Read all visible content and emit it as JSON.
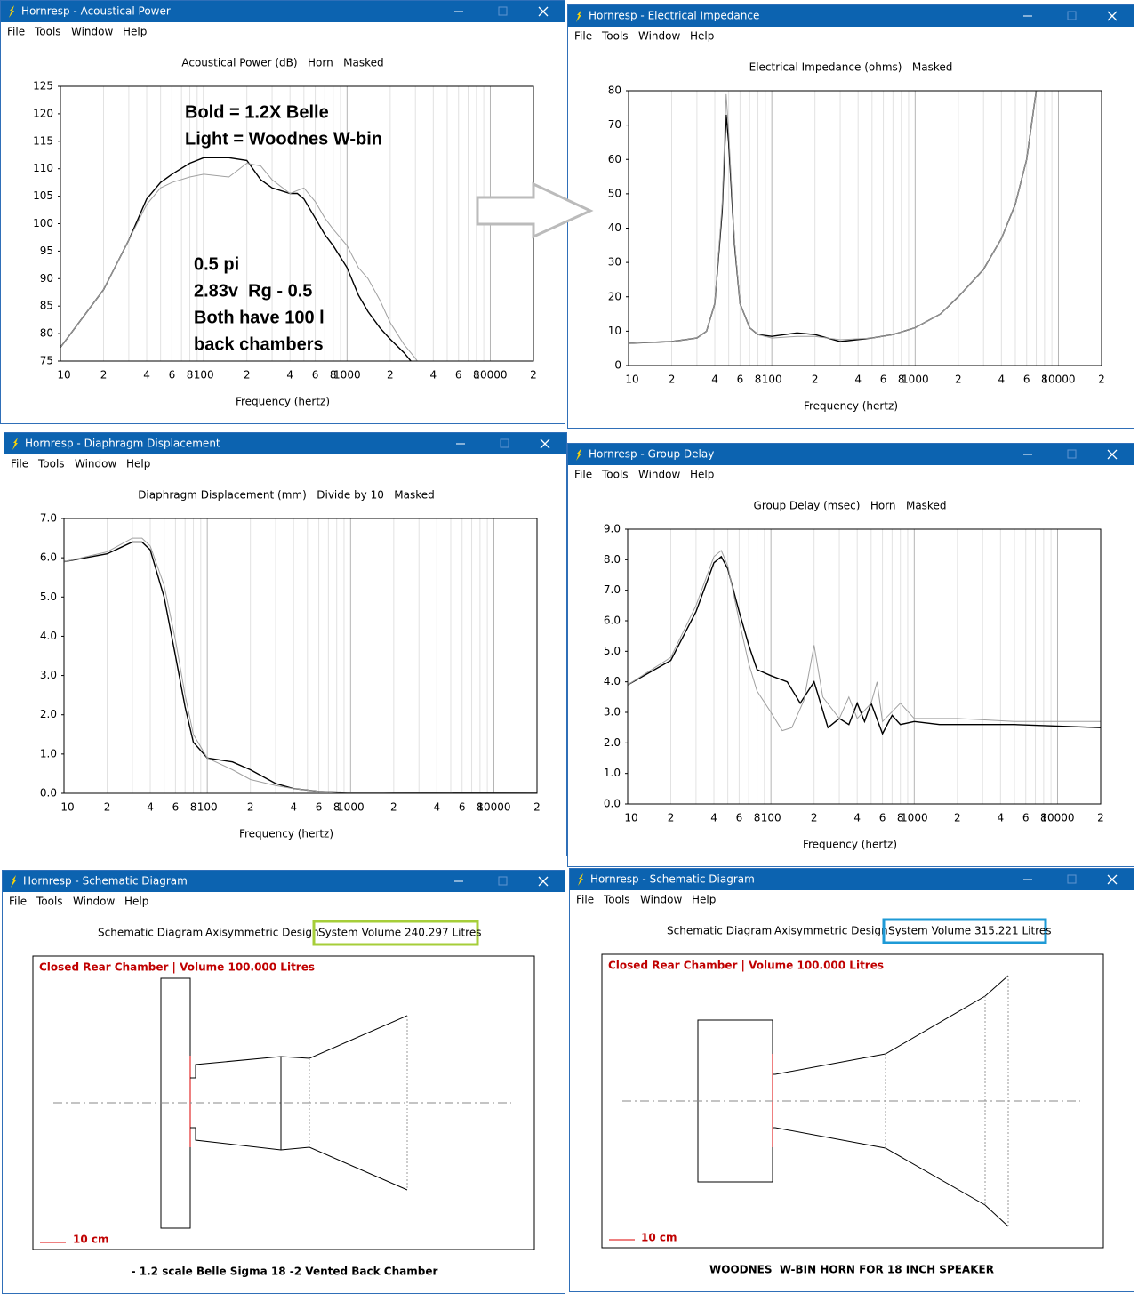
{
  "windows": [
    {
      "title": "Hornresp - Acoustical Power",
      "menu": [
        "File",
        "Tools",
        "Window",
        "Help"
      ]
    },
    {
      "title": "Hornresp - Electrical Impedance",
      "menu": [
        "File",
        "Tools",
        "Window",
        "Help"
      ]
    },
    {
      "title": "Hornresp - Diaphragm Displacement",
      "menu": [
        "File",
        "Tools",
        "Window",
        "Help"
      ]
    },
    {
      "title": "Hornresp - Group Delay",
      "menu": [
        "File",
        "Tools",
        "Window",
        "Help"
      ]
    },
    {
      "title": "Hornresp - Schematic Diagram",
      "menu": [
        "File",
        "Tools",
        "Window",
        "Help"
      ]
    },
    {
      "title": "Hornresp - Schematic Diagram",
      "menu": [
        "File",
        "Tools",
        "Window",
        "Help"
      ]
    }
  ],
  "chart_data": [
    {
      "type": "line",
      "title": "Acoustical Power (dB)   Horn   Masked",
      "xlabel": "Frequency (hertz)",
      "xscale": "log",
      "xlim": [
        10,
        20000
      ],
      "xticks": [
        10,
        {
          "value": 20,
          "label": "2"
        },
        {
          "value": 40,
          "label": "4"
        },
        {
          "value": 60,
          "label": "6"
        },
        {
          "value": 80,
          "label": "8"
        },
        100,
        {
          "value": 200,
          "label": "2"
        },
        {
          "value": 400,
          "label": "4"
        },
        {
          "value": 600,
          "label": "6"
        },
        {
          "value": 800,
          "label": "8"
        },
        1000,
        {
          "value": 2000,
          "label": "2"
        },
        {
          "value": 4000,
          "label": "4"
        },
        {
          "value": 6000,
          "label": "6"
        },
        {
          "value": 8000,
          "label": "8"
        },
        10000,
        {
          "value": 20000,
          "label": "2"
        }
      ],
      "xminor": [
        30,
        50,
        70,
        90,
        300,
        500,
        700,
        900,
        3000,
        5000,
        7000,
        9000
      ],
      "ylim": [
        75,
        125
      ],
      "yticks": [
        75,
        80,
        85,
        90,
        95,
        100,
        105,
        110,
        115,
        120,
        125
      ],
      "grid": "x",
      "annotations": [
        "Bold = 1.2X Belle",
        "Light = Woodnes W-bin",
        "0.5 pi",
        "2.83v  Rg - 0.5",
        "Both have 100 l",
        "back chambers"
      ],
      "series": [
        {
          "color": "#000000",
          "x": [
            10,
            20,
            30,
            40,
            50,
            60,
            80,
            100,
            150,
            200,
            250,
            300,
            400,
            450,
            500,
            600,
            700,
            800,
            1000,
            1200,
            1400,
            1700,
            2000,
            2500,
            3000
          ],
          "values": [
            77.5,
            88,
            97,
            104.5,
            107.5,
            109,
            111,
            112,
            112,
            111.5,
            108,
            106.5,
            105.5,
            105.5,
            104.5,
            101,
            98,
            96,
            92,
            87,
            84,
            81,
            79,
            76.5,
            74
          ]
        },
        {
          "color": "#a0a0a0",
          "x": [
            10,
            20,
            30,
            40,
            50,
            60,
            80,
            100,
            150,
            200,
            250,
            300,
            400,
            500,
            600,
            700,
            800,
            1000,
            1200,
            1400,
            1700,
            2000,
            2500,
            3000,
            3500
          ],
          "values": [
            77.5,
            88,
            97,
            103.5,
            106.5,
            107.5,
            108.5,
            109,
            108.5,
            111,
            110.5,
            108,
            105.5,
            106.5,
            104,
            101,
            99,
            96,
            92,
            90,
            86,
            82,
            78,
            75.5,
            73
          ]
        }
      ]
    },
    {
      "type": "line",
      "title": "Electrical Impedance (ohms)   Masked",
      "xlabel": "Frequency (hertz)",
      "xscale": "log",
      "xlim": [
        10,
        20000
      ],
      "xticks": [
        10,
        {
          "value": 20,
          "label": "2"
        },
        {
          "value": 40,
          "label": "4"
        },
        {
          "value": 60,
          "label": "6"
        },
        {
          "value": 80,
          "label": "8"
        },
        100,
        {
          "value": 200,
          "label": "2"
        },
        {
          "value": 400,
          "label": "4"
        },
        {
          "value": 600,
          "label": "6"
        },
        {
          "value": 800,
          "label": "8"
        },
        1000,
        {
          "value": 2000,
          "label": "2"
        },
        {
          "value": 4000,
          "label": "4"
        },
        {
          "value": 6000,
          "label": "6"
        },
        {
          "value": 8000,
          "label": "8"
        },
        10000,
        {
          "value": 20000,
          "label": "2"
        }
      ],
      "xminor": [
        30,
        50,
        70,
        90,
        300,
        500,
        700,
        900,
        3000,
        5000,
        7000,
        9000
      ],
      "ylim": [
        0,
        80
      ],
      "yticks": [
        0,
        10,
        20,
        30,
        40,
        50,
        60,
        70,
        80
      ],
      "grid": "x",
      "series": [
        {
          "color": "#000000",
          "x": [
            10,
            20,
            30,
            35,
            40,
            45,
            48,
            50,
            55,
            60,
            70,
            80,
            100,
            150,
            200,
            300,
            500,
            700,
            1000,
            1500,
            2000,
            3000,
            4000,
            5000,
            6000,
            7000,
            8000
          ],
          "values": [
            6.5,
            7,
            8,
            10,
            18,
            45,
            73,
            65,
            35,
            18,
            11,
            9,
            8.5,
            9.5,
            9,
            7,
            8,
            9,
            11,
            15,
            20,
            28,
            37,
            47,
            60,
            80,
            100
          ]
        },
        {
          "color": "#a0a0a0",
          "x": [
            10,
            20,
            30,
            35,
            40,
            45,
            48,
            50,
            55,
            60,
            70,
            80,
            100,
            150,
            200,
            300,
            500,
            700,
            1000,
            1500,
            2000,
            3000,
            4000,
            5000,
            6000,
            7000,
            8000
          ],
          "values": [
            6.5,
            7,
            8,
            10,
            18,
            47,
            79,
            68,
            36,
            18,
            11,
            9,
            8,
            8.5,
            8.5,
            7.5,
            8,
            9,
            11,
            15,
            20,
            28,
            37,
            47,
            60,
            80,
            100
          ]
        }
      ]
    },
    {
      "type": "line",
      "title": "Diaphragm Displacement (mm)   Divide by 10   Masked",
      "xlabel": "Frequency (hertz)",
      "xscale": "log",
      "xlim": [
        10,
        20000
      ],
      "xticks": [
        10,
        {
          "value": 20,
          "label": "2"
        },
        {
          "value": 40,
          "label": "4"
        },
        {
          "value": 60,
          "label": "6"
        },
        {
          "value": 80,
          "label": "8"
        },
        100,
        {
          "value": 200,
          "label": "2"
        },
        {
          "value": 400,
          "label": "4"
        },
        {
          "value": 600,
          "label": "6"
        },
        {
          "value": 800,
          "label": "8"
        },
        1000,
        {
          "value": 2000,
          "label": "2"
        },
        {
          "value": 4000,
          "label": "4"
        },
        {
          "value": 6000,
          "label": "6"
        },
        {
          "value": 8000,
          "label": "8"
        },
        10000,
        {
          "value": 20000,
          "label": "2"
        }
      ],
      "xminor": [
        30,
        50,
        70,
        90,
        300,
        500,
        700,
        900,
        3000,
        5000,
        7000,
        9000
      ],
      "ylim": [
        0,
        7
      ],
      "yticks": [
        {
          "value": 0,
          "label": "0.0"
        },
        {
          "value": 1,
          "label": "1.0"
        },
        {
          "value": 2,
          "label": "2.0"
        },
        {
          "value": 3,
          "label": "3.0"
        },
        {
          "value": 4,
          "label": "4.0"
        },
        {
          "value": 5,
          "label": "5.0"
        },
        {
          "value": 6,
          "label": "6.0"
        },
        {
          "value": 7,
          "label": "7.0"
        }
      ],
      "grid": "x",
      "series": [
        {
          "color": "#000000",
          "x": [
            10,
            20,
            30,
            35,
            40,
            50,
            60,
            70,
            80,
            100,
            150,
            200,
            300,
            400,
            600,
            1000,
            2000,
            20000
          ],
          "values": [
            5.9,
            6.1,
            6.4,
            6.4,
            6.2,
            5,
            3.5,
            2.2,
            1.3,
            0.9,
            0.8,
            0.6,
            0.25,
            0.12,
            0.05,
            0.02,
            0.01,
            0
          ]
        },
        {
          "color": "#a0a0a0",
          "x": [
            10,
            20,
            30,
            35,
            40,
            50,
            60,
            70,
            80,
            100,
            150,
            200,
            300,
            400,
            600,
            1000,
            2000,
            20000
          ],
          "values": [
            5.9,
            6.15,
            6.5,
            6.5,
            6.3,
            5.3,
            3.9,
            2.5,
            1.5,
            0.9,
            0.6,
            0.35,
            0.2,
            0.12,
            0.05,
            0.02,
            0.01,
            0
          ]
        }
      ]
    },
    {
      "type": "line",
      "title": "Group Delay (msec)   Horn   Masked",
      "xlabel": "Frequency (hertz)",
      "xscale": "log",
      "xlim": [
        10,
        20000
      ],
      "xticks": [
        10,
        {
          "value": 20,
          "label": "2"
        },
        {
          "value": 40,
          "label": "4"
        },
        {
          "value": 60,
          "label": "6"
        },
        {
          "value": 80,
          "label": "8"
        },
        100,
        {
          "value": 200,
          "label": "2"
        },
        {
          "value": 400,
          "label": "4"
        },
        {
          "value": 600,
          "label": "6"
        },
        {
          "value": 800,
          "label": "8"
        },
        1000,
        {
          "value": 2000,
          "label": "2"
        },
        {
          "value": 4000,
          "label": "4"
        },
        {
          "value": 6000,
          "label": "6"
        },
        {
          "value": 8000,
          "label": "8"
        },
        10000,
        {
          "value": 20000,
          "label": "2"
        }
      ],
      "xminor": [
        30,
        50,
        70,
        90,
        300,
        500,
        700,
        900,
        3000,
        5000,
        7000,
        9000
      ],
      "ylim": [
        0,
        9
      ],
      "yticks": [
        {
          "value": 0,
          "label": "0.0"
        },
        {
          "value": 1,
          "label": "1.0"
        },
        {
          "value": 2,
          "label": "2.0"
        },
        {
          "value": 3,
          "label": "3.0"
        },
        {
          "value": 4,
          "label": "4.0"
        },
        {
          "value": 5,
          "label": "5.0"
        },
        {
          "value": 6,
          "label": "6.0"
        },
        {
          "value": 7,
          "label": "7.0"
        },
        {
          "value": 8,
          "label": "8.0"
        },
        {
          "value": 9,
          "label": "9.0"
        }
      ],
      "grid": "x",
      "series": [
        {
          "color": "#000000",
          "x": [
            10,
            20,
            30,
            40,
            45,
            50,
            60,
            70,
            80,
            100,
            130,
            160,
            200,
            250,
            300,
            350,
            400,
            450,
            500,
            600,
            700,
            800,
            1000,
            1500,
            2000,
            5000,
            20000
          ],
          "values": [
            3.9,
            4.7,
            6.3,
            7.9,
            8.1,
            7.7,
            6.3,
            5.2,
            4.4,
            4.2,
            4,
            3.3,
            4,
            2.5,
            2.8,
            2.6,
            3.3,
            2.7,
            3.3,
            2.3,
            2.9,
            2.6,
            2.7,
            2.6,
            2.6,
            2.6,
            2.5
          ]
        },
        {
          "color": "#a0a0a0",
          "x": [
            10,
            20,
            30,
            40,
            45,
            50,
            60,
            70,
            80,
            100,
            120,
            140,
            170,
            200,
            230,
            300,
            350,
            400,
            500,
            550,
            600,
            800,
            1000,
            1500,
            2000,
            5000,
            20000
          ],
          "values": [
            3.9,
            4.8,
            6.5,
            8.1,
            8.3,
            7.8,
            6,
            4.6,
            3.7,
            3,
            2.4,
            2.5,
            3.4,
            5.2,
            3.5,
            2.8,
            3.5,
            2.8,
            3.3,
            4,
            2.7,
            3.3,
            2.8,
            2.8,
            2.8,
            2.7,
            2.7
          ]
        }
      ]
    }
  ],
  "schematics": [
    {
      "labels": [
        "Schematic Diagram",
        "Axisymmetric Design"
      ],
      "system_volume": "System Volume 240.297 Litres",
      "system_volume_color": "#a6ce39",
      "chamber_label": "Closed Rear Chamber | Volume 100.000 Litres",
      "scale_label": "10 cm",
      "caption": "- 1.2 scale Belle Sigma 18 -2 Vented Back Chamber"
    },
    {
      "labels": [
        "Schematic Diagram",
        "Axisymmetric Design"
      ],
      "system_volume": "System Volume 315.221 Litres",
      "system_volume_color": "#1e9ad6",
      "chamber_label": "Closed Rear Chamber | Volume 100.000 Litres",
      "scale_label": "10 cm",
      "caption": "WOODNES  W-BIN HORN FOR 18 INCH SPEAKER"
    }
  ]
}
